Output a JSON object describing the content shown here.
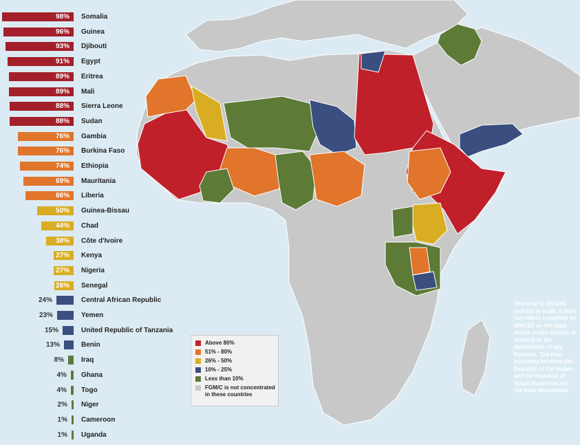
{
  "colors": {
    "above_80": "#c0202a",
    "bar_above_80": "#a31f2a",
    "51_80": "#e0752b",
    "26_50": "#d8ad21",
    "10_25": "#3a4f7f",
    "less_10": "#5d7a37",
    "not_concentrated": "#c8c8c8",
    "ocean": "#dcebf3"
  },
  "countries": [
    {
      "name": "Somalia",
      "pct": "98%",
      "value": 98,
      "category": "above_80"
    },
    {
      "name": "Guinea",
      "pct": "96%",
      "value": 96,
      "category": "above_80"
    },
    {
      "name": "Djibouti",
      "pct": "93%",
      "value": 93,
      "category": "above_80"
    },
    {
      "name": "Egypt",
      "pct": "91%",
      "value": 91,
      "category": "above_80"
    },
    {
      "name": "Eritrea",
      "pct": "89%",
      "value": 89,
      "category": "above_80"
    },
    {
      "name": "Mali",
      "pct": "89%",
      "value": 89,
      "category": "above_80"
    },
    {
      "name": "Sierra Leone",
      "pct": "88%",
      "value": 88,
      "category": "above_80"
    },
    {
      "name": "Sudan",
      "pct": "88%",
      "value": 88,
      "category": "above_80"
    },
    {
      "name": "Gambia",
      "pct": "76%",
      "value": 76,
      "category": "51_80"
    },
    {
      "name": "Burkina Faso",
      "pct": "76%",
      "value": 76,
      "category": "51_80"
    },
    {
      "name": "Ethiopia",
      "pct": "74%",
      "value": 74,
      "category": "51_80"
    },
    {
      "name": "Mauritania",
      "pct": "69%",
      "value": 69,
      "category": "51_80"
    },
    {
      "name": "Liberia",
      "pct": "66%",
      "value": 66,
      "category": "51_80"
    },
    {
      "name": "Guinea-Bissau",
      "pct": "50%",
      "value": 50,
      "category": "26_50"
    },
    {
      "name": "Chad",
      "pct": "44%",
      "value": 44,
      "category": "26_50"
    },
    {
      "name": "Côte d'Ivoire",
      "pct": "38%",
      "value": 38,
      "category": "26_50"
    },
    {
      "name": "Kenya",
      "pct": "27%",
      "value": 27,
      "category": "26_50"
    },
    {
      "name": "Nigeria",
      "pct": "27%",
      "value": 27,
      "category": "26_50"
    },
    {
      "name": "Senegal",
      "pct": "26%",
      "value": 26,
      "category": "26_50"
    },
    {
      "name": "Central African Republic",
      "pct": "24%",
      "value": 24,
      "category": "10_25"
    },
    {
      "name": "Yemen",
      "pct": "23%",
      "value": 23,
      "category": "10_25"
    },
    {
      "name": "United Republic of Tanzania",
      "pct": "15%",
      "value": 15,
      "category": "10_25"
    },
    {
      "name": "Benin",
      "pct": "13%",
      "value": 13,
      "category": "10_25"
    },
    {
      "name": "Iraq",
      "pct": "8%",
      "value": 8,
      "category": "less_10"
    },
    {
      "name": "Ghana",
      "pct": "4%",
      "value": 4,
      "category": "less_10"
    },
    {
      "name": "Togo",
      "pct": "4%",
      "value": 4,
      "category": "less_10"
    },
    {
      "name": "Niger",
      "pct": "2%",
      "value": 2,
      "category": "less_10"
    },
    {
      "name": "Cameroon",
      "pct": "1%",
      "value": 1,
      "category": "less_10"
    },
    {
      "name": "Uganda",
      "pct": "1%",
      "value": 1,
      "category": "less_10"
    }
  ],
  "legend": [
    {
      "label": "Above 80%",
      "category": "above_80"
    },
    {
      "label": "51% - 80%",
      "category": "51_80"
    },
    {
      "label": "26% - 50%",
      "category": "26_50"
    },
    {
      "label": "10% - 25%",
      "category": "10_25"
    },
    {
      "label": "Less than 10%",
      "category": "less_10"
    },
    {
      "label": "FGM/C is not concentrated in these countries",
      "category": "not_concentrated"
    }
  ],
  "note": "This map is stylized and not to scale. It does not reflect a position by UNICEF on the legal status of any country or territory or the delimitation of any frontiers. The final boundary between the Republic of the Sudan and the Republic of South Sudan has not yet been determined."
}
